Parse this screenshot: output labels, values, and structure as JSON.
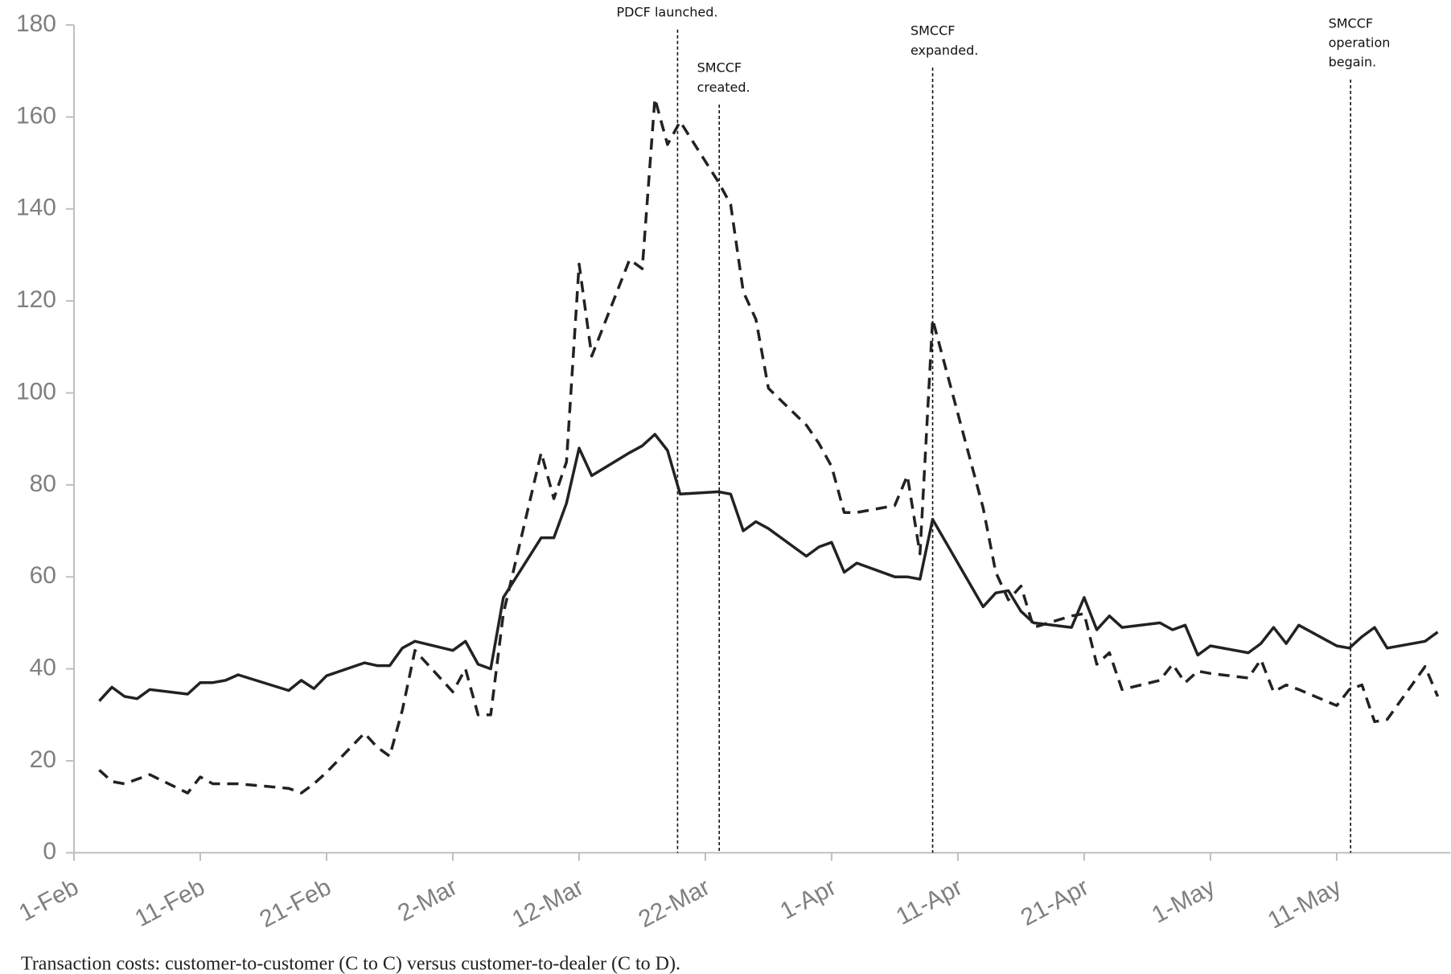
{
  "chart_data": {
    "type": "line",
    "caption": "Transaction costs: customer-to-customer (C to C) versus customer-to-dealer (C to D).",
    "x": [
      2,
      3,
      4,
      5,
      6,
      9,
      10,
      11,
      12,
      13,
      17,
      18,
      19,
      20,
      23,
      24,
      25,
      26,
      27,
      30,
      31,
      32,
      33,
      34,
      37,
      38,
      39,
      40,
      41,
      44,
      45,
      46,
      47,
      48,
      51,
      52,
      53,
      54,
      55,
      58,
      59,
      60,
      61,
      62,
      65,
      66,
      67,
      68,
      72,
      73,
      74,
      75,
      76,
      79,
      80,
      81,
      82,
      83,
      86,
      87,
      88,
      89,
      90,
      93,
      94,
      95,
      96,
      97,
      100,
      101,
      102,
      103,
      104,
      107,
      108
    ],
    "series": [
      {
        "color": "#222222",
        "dash": "solid",
        "values": [
          33,
          36,
          34,
          33.5,
          35.5,
          34.5,
          37,
          37,
          37.5,
          38.7,
          35.3,
          37.5,
          35.7,
          38.5,
          41.3,
          40.7,
          40.7,
          44.5,
          46,
          44,
          46,
          41,
          40,
          55.5,
          68.5,
          68.5,
          76,
          88,
          82,
          87,
          88.5,
          91,
          87.5,
          78,
          78.5,
          78,
          70,
          72,
          70.5,
          64.5,
          66.5,
          67.5,
          61,
          63,
          60,
          60,
          59.5,
          72.5,
          53.5,
          56.5,
          57,
          52.5,
          50,
          49,
          55.5,
          48.5,
          51.5,
          49,
          50,
          48.5,
          49.5,
          43,
          45,
          43.5,
          45.5,
          49,
          45.5,
          49.5,
          45,
          44.5,
          47,
          49,
          44.5,
          46,
          48
        ]
      },
      {
        "color": "#222222",
        "dash": "dashed",
        "values": [
          18,
          15.5,
          15,
          16,
          17,
          13,
          16.5,
          15,
          15,
          15,
          14,
          13,
          15,
          17.5,
          26,
          23,
          21,
          31,
          44,
          35,
          40,
          30,
          30,
          52,
          87,
          77,
          85,
          128,
          108,
          129,
          127,
          164,
          154,
          159,
          146,
          141,
          122,
          116,
          101,
          93,
          89,
          84,
          74,
          74,
          75.5,
          82,
          65,
          116,
          75,
          61,
          55,
          58,
          49,
          51.5,
          52,
          41,
          43.5,
          35.5,
          37.5,
          41,
          37,
          39.5,
          39,
          38,
          42,
          35,
          36.5,
          35.5,
          32,
          35.5,
          36.5,
          28.5,
          29,
          40.5,
          34
        ]
      }
    ],
    "xlim": [
      0,
      109
    ],
    "xticks": [
      {
        "value": 0,
        "label": "1-Feb"
      },
      {
        "value": 10,
        "label": "11-Feb"
      },
      {
        "value": 20,
        "label": "21-Feb"
      },
      {
        "value": 30,
        "label": "2-Mar"
      },
      {
        "value": 40,
        "label": "12-Mar"
      },
      {
        "value": 50,
        "label": "22-Mar"
      },
      {
        "value": 60,
        "label": "1-Apr"
      },
      {
        "value": 70,
        "label": "11-Apr"
      },
      {
        "value": 80,
        "label": "21-Apr"
      },
      {
        "value": 90,
        "label": "1-May"
      },
      {
        "value": 100,
        "label": "11-May"
      }
    ],
    "ylim": [
      0,
      180
    ],
    "yticks": [
      0,
      20,
      40,
      60,
      80,
      100,
      120,
      140,
      160,
      180
    ],
    "annotations": [
      {
        "x": 47.8,
        "lines": [
          "PDCF launched."
        ]
      },
      {
        "x": 51.1,
        "lines": [
          "SMCCF",
          "created."
        ]
      },
      {
        "x": 68.0,
        "lines": [
          "SMCCF",
          "expanded."
        ]
      },
      {
        "x": 101.1,
        "lines": [
          "SMCCF",
          "operation",
          "begain."
        ]
      }
    ]
  }
}
